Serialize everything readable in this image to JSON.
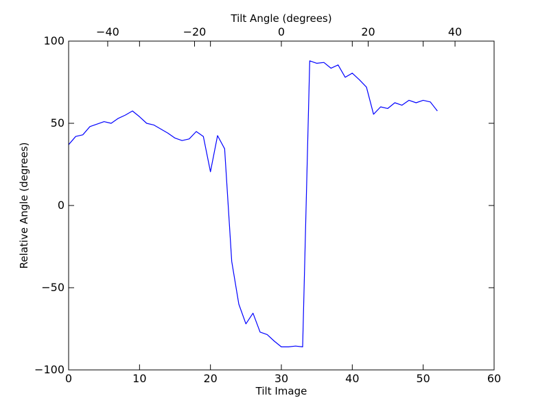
{
  "chart_data": {
    "type": "line",
    "xlabel": "Tilt Image",
    "ylabel": "Relative Angle (degrees)",
    "top_xlabel": "Tilt Angle (degrees)",
    "xlim": [
      0,
      60
    ],
    "ylim": [
      -100,
      100
    ],
    "top_xlim": [
      -49,
      49
    ],
    "x_ticks": [
      0,
      10,
      20,
      30,
      40,
      50,
      60
    ],
    "y_ticks": [
      -100,
      -50,
      0,
      50,
      100
    ],
    "top_x_ticks": [
      -40,
      -20,
      0,
      20,
      40
    ],
    "x_tick_labels": [
      "0",
      "10",
      "20",
      "30",
      "40",
      "50",
      "60"
    ],
    "y_tick_labels": [
      "−100",
      "−50",
      "0",
      "50",
      "100"
    ],
    "top_x_tick_labels": [
      "−40",
      "−20",
      "0",
      "20",
      "40"
    ],
    "grid": false,
    "line_color": "#0000ff",
    "series": [
      {
        "x": [
          0,
          1,
          2,
          3,
          4,
          5,
          6,
          7,
          8,
          9,
          10,
          11,
          12,
          13,
          14,
          15,
          16,
          17,
          18,
          19,
          20,
          21,
          22,
          23,
          24,
          25,
          26,
          27,
          28,
          29,
          30,
          31,
          32,
          33,
          34,
          35,
          36,
          37,
          38,
          39,
          40,
          41,
          42,
          43,
          44,
          45,
          46,
          47,
          48,
          49,
          50,
          51,
          52
        ],
        "values": [
          37,
          42,
          43,
          48,
          49.5,
          51,
          50,
          53,
          55,
          57.5,
          54,
          50,
          49,
          46.5,
          44,
          41,
          39.5,
          40.5,
          45,
          42,
          20.5,
          42.5,
          34.5,
          -34,
          -60,
          -72,
          -65.5,
          -77,
          -78.5,
          -82.5,
          -86,
          -86,
          -85.5,
          -86,
          88,
          86.5,
          87,
          83.5,
          85.5,
          78,
          80.5,
          76.5,
          72,
          55.5,
          60,
          59,
          62.5,
          61,
          64,
          62.5,
          64,
          63,
          57.5
        ]
      }
    ]
  }
}
